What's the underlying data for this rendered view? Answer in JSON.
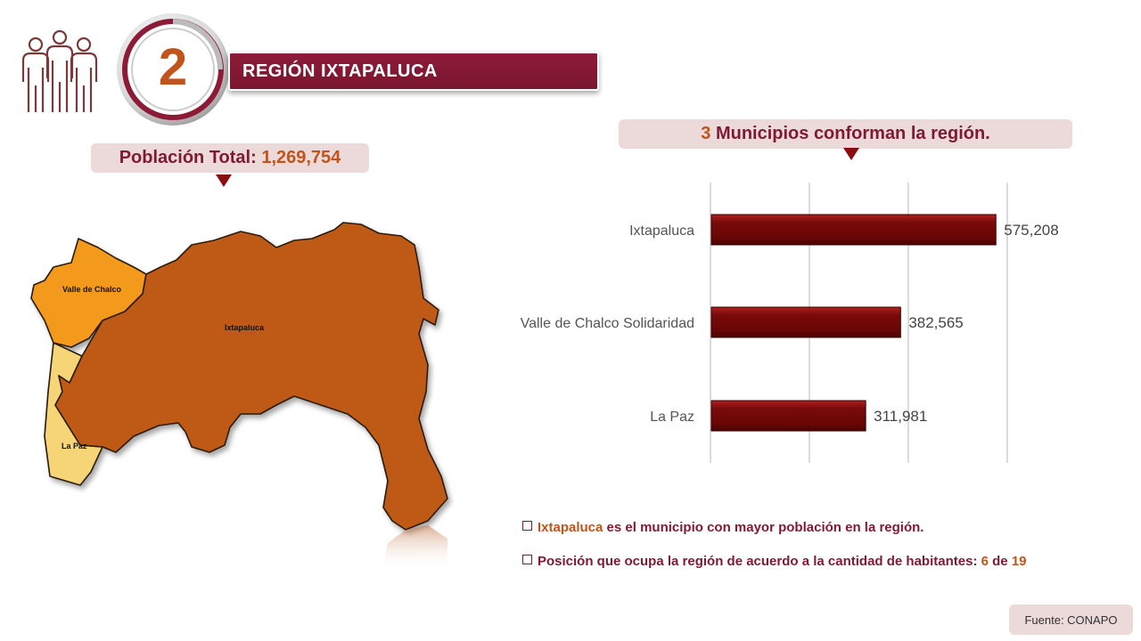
{
  "region": {
    "number": "2",
    "title": "REGIÓN IXTAPALUCA"
  },
  "population": {
    "label": "Población Total:",
    "value": "1,269,754"
  },
  "municipios_callout": {
    "count": "3",
    "text": "Municipios conforman la región."
  },
  "map": {
    "labels": {
      "valle_de_chalco": "Valle de Chalco",
      "ixtapaluca": "Ixtapaluca",
      "la_paz": "La Paz"
    },
    "colors": {
      "ixtapaluca": "#bf5a16",
      "valle_de_chalco": "#f39a1a",
      "la_paz": "#f6d577"
    }
  },
  "chart_data": {
    "type": "bar",
    "orientation": "horizontal",
    "categories": [
      "Ixtapaluca",
      "Valle de Chalco Solidaridad",
      "La Paz"
    ],
    "values": [
      575208,
      382565,
      311981
    ],
    "value_labels": [
      "575,208",
      "382,565",
      "311,981"
    ],
    "xlim": [
      0,
      600000
    ],
    "grid": true,
    "bar_color": "#7a0a0a"
  },
  "bullets": {
    "b1_highlight": "Ixtapaluca",
    "b1_text": "es el municipio con mayor población en la región.",
    "b2_text": "Posición que ocupa la región de acuerdo a la cantidad de habitantes:",
    "b2_rank": "6",
    "b2_of": "de",
    "b2_total": "19"
  },
  "source": "Fuente: CONAPO"
}
